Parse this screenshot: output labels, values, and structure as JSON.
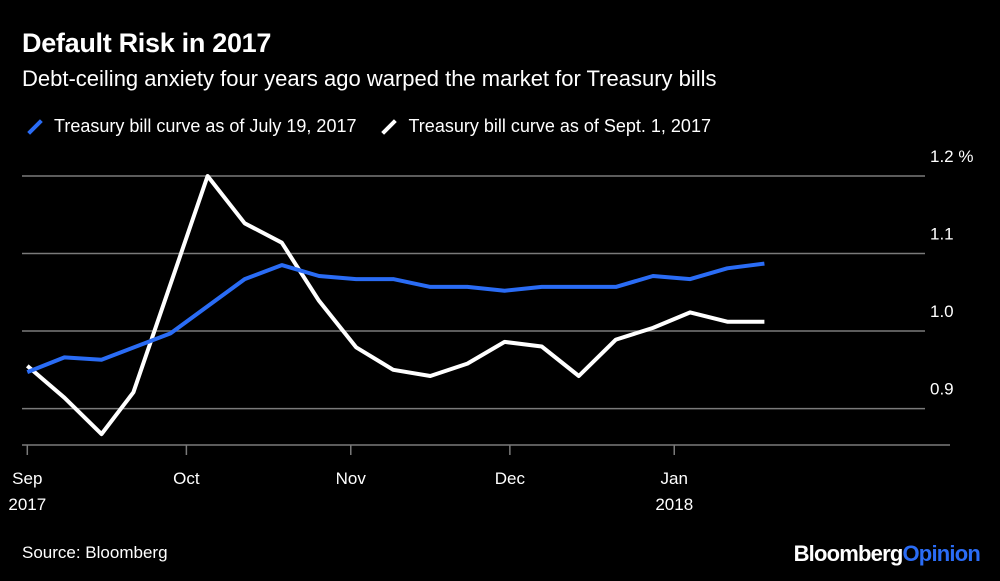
{
  "header": {
    "title": "Default Risk in 2017",
    "subtitle": "Debt-ceiling anxiety four years ago warped the market for Treasury bills"
  },
  "footer": {
    "source": "Source: Bloomberg",
    "brand_part1": "Bloomberg",
    "brand_part2": "Opinion"
  },
  "colors": {
    "background": "#000000",
    "series_blue": "#2a6cf5",
    "series_white": "#ffffff",
    "grid": "#7a7a7a"
  },
  "chart_data": {
    "type": "line",
    "title": "Default Risk in 2017",
    "subtitle": "Debt-ceiling anxiety four years ago warped the market for Treasury bills",
    "xlabel": "",
    "ylabel": "",
    "y_unit": "%",
    "ylim": [
      0.853,
      1.2
    ],
    "y_ticks": [
      {
        "value": 0.9,
        "label": "0.9"
      },
      {
        "value": 1.0,
        "label": "1.0"
      },
      {
        "value": 1.1,
        "label": "1.1"
      },
      {
        "value": 1.2,
        "label": "1.2 %"
      }
    ],
    "x_range": [
      "2017-08-31",
      "2018-02-22"
    ],
    "x_ticks": [
      {
        "date": "2017-09-01",
        "label": "Sep",
        "sublabel": "2017"
      },
      {
        "date": "2017-10-01",
        "label": "Oct",
        "sublabel": ""
      },
      {
        "date": "2017-11-01",
        "label": "Nov",
        "sublabel": ""
      },
      {
        "date": "2017-12-01",
        "label": "Dec",
        "sublabel": ""
      },
      {
        "date": "2018-01-01",
        "label": "Jan",
        "sublabel": "2018"
      }
    ],
    "grid": true,
    "legend_position": "top-left",
    "series": [
      {
        "name": "Treasury bill curve as of July 19, 2017",
        "color": "#2a6cf5",
        "points": [
          [
            "2017-09-01",
            0.947
          ],
          [
            "2017-09-08",
            0.966
          ],
          [
            "2017-09-15",
            0.963
          ],
          [
            "2017-09-28",
            0.997
          ],
          [
            "2017-10-12",
            1.067
          ],
          [
            "2017-10-19",
            1.085
          ],
          [
            "2017-10-26",
            1.071
          ],
          [
            "2017-11-02",
            1.067
          ],
          [
            "2017-11-09",
            1.067
          ],
          [
            "2017-11-16",
            1.057
          ],
          [
            "2017-11-23",
            1.057
          ],
          [
            "2017-11-30",
            1.052
          ],
          [
            "2017-12-07",
            1.057
          ],
          [
            "2017-12-14",
            1.057
          ],
          [
            "2017-12-21",
            1.057
          ],
          [
            "2017-12-28",
            1.071
          ],
          [
            "2018-01-04",
            1.067
          ],
          [
            "2018-01-11",
            1.081
          ],
          [
            "2018-01-18",
            1.087
          ]
        ]
      },
      {
        "name": "Treasury bill curve as of Sept. 1, 2017",
        "color": "#ffffff",
        "points": [
          [
            "2017-09-01",
            0.955
          ],
          [
            "2017-09-08",
            0.914
          ],
          [
            "2017-09-15",
            0.867
          ],
          [
            "2017-09-21",
            0.921
          ],
          [
            "2017-10-05",
            1.2
          ],
          [
            "2017-10-12",
            1.139
          ],
          [
            "2017-10-19",
            1.114
          ],
          [
            "2017-10-26",
            1.039
          ],
          [
            "2017-11-02",
            0.979
          ],
          [
            "2017-11-09",
            0.95
          ],
          [
            "2017-11-16",
            0.942
          ],
          [
            "2017-11-23",
            0.958
          ],
          [
            "2017-11-30",
            0.986
          ],
          [
            "2017-12-07",
            0.98
          ],
          [
            "2017-12-14",
            0.942
          ],
          [
            "2017-12-21",
            0.989
          ],
          [
            "2017-12-28",
            1.004
          ],
          [
            "2018-01-04",
            1.024
          ],
          [
            "2018-01-11",
            1.012
          ],
          [
            "2018-01-18",
            1.012
          ]
        ]
      }
    ]
  }
}
